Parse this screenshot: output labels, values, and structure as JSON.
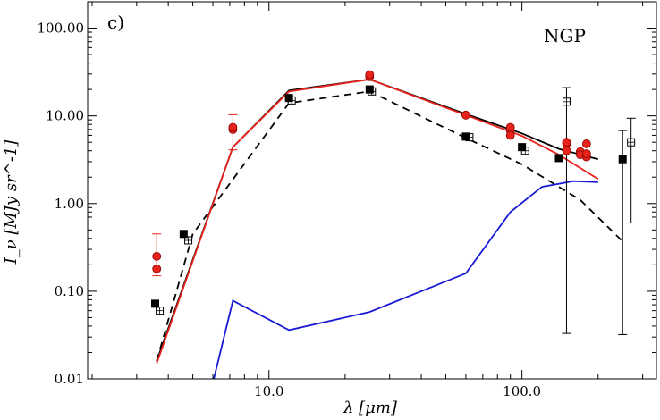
{
  "chart_data": {
    "type": "line",
    "panel_label": "c)",
    "region_label": "NGP",
    "xlabel": "λ [μm]",
    "ylabel": "I_ν [MJy sr^-1]",
    "xscale": "log",
    "yscale": "log",
    "xlim": [
      1.92,
      340
    ],
    "ylim": [
      0.01,
      200
    ],
    "xticks": [
      {
        "value": 10,
        "label": "10.0"
      },
      {
        "value": 100,
        "label": "100.0"
      }
    ],
    "yticks": [
      {
        "value": 0.01,
        "label": "0.01"
      },
      {
        "value": 0.1,
        "label": "0.10"
      },
      {
        "value": 1,
        "label": "1.00"
      },
      {
        "value": 10,
        "label": "10.00"
      },
      {
        "value": 100,
        "label": "100.00"
      }
    ],
    "lines": [
      {
        "name": "total model",
        "color": "#000000",
        "style": "solid",
        "x": [
          3.6,
          7.2,
          12,
          25,
          60,
          100,
          140,
          200
        ],
        "y": [
          0.016,
          4.4,
          19.5,
          26,
          10.5,
          6.3,
          4.2,
          3.2
        ]
      },
      {
        "name": "model (dashed)",
        "color": "#000000",
        "style": "dashed",
        "x": [
          3.6,
          5.0,
          12,
          25,
          60,
          100,
          170,
          250
        ],
        "y": [
          0.016,
          0.45,
          14,
          19,
          5.6,
          2.8,
          1.1,
          0.37
        ]
      },
      {
        "name": "red model",
        "color": "#e8231c",
        "style": "solid",
        "x": [
          3.6,
          7.2,
          12,
          25,
          60,
          100,
          140,
          200
        ],
        "y": [
          0.015,
          4.4,
          19,
          26,
          10.2,
          5.9,
          3.6,
          1.9
        ]
      },
      {
        "name": "blue model",
        "color": "#1a1ad6",
        "style": "solid",
        "x": [
          6.0,
          7.2,
          12,
          25,
          60,
          90,
          120,
          160,
          200
        ],
        "y": [
          0.009,
          0.078,
          0.036,
          0.058,
          0.16,
          0.8,
          1.55,
          1.8,
          1.75
        ]
      }
    ],
    "red_circles": [
      {
        "x": 3.6,
        "y": 0.25,
        "err_low": 0.15,
        "err_high": 0.45
      },
      {
        "x": 3.6,
        "y": 0.18
      },
      {
        "x": 7.2,
        "y": 7.0,
        "err_low": 4.1,
        "err_high": 10.3
      },
      {
        "x": 7.2,
        "y": 7.4
      },
      {
        "x": 25,
        "y": 28
      },
      {
        "x": 25,
        "y": 29.5
      },
      {
        "x": 60,
        "y": 10.2
      },
      {
        "x": 90,
        "y": 6.8
      },
      {
        "x": 90,
        "y": 7.4
      },
      {
        "x": 90,
        "y": 6.0
      },
      {
        "x": 150,
        "y": 4.8
      },
      {
        "x": 150,
        "y": 5.0
      },
      {
        "x": 150,
        "y": 4.0
      },
      {
        "x": 170,
        "y": 3.9
      },
      {
        "x": 170,
        "y": 3.6
      },
      {
        "x": 180,
        "y": 4.8
      },
      {
        "x": 180,
        "y": 3.4
      },
      {
        "x": 180,
        "y": 3.7
      }
    ],
    "filled_squares": [
      {
        "x": 3.55,
        "y": 0.072
      },
      {
        "x": 4.6,
        "y": 0.45
      },
      {
        "x": 12,
        "y": 16
      },
      {
        "x": 25,
        "y": 20
      },
      {
        "x": 60,
        "y": 5.8
      },
      {
        "x": 100,
        "y": 4.4
      },
      {
        "x": 140,
        "y": 3.3
      },
      {
        "x": 250,
        "y": 3.2,
        "err_low": 0.032,
        "err_high": 6.8
      }
    ],
    "open_squares": [
      {
        "x": 3.7,
        "y": 0.06
      },
      {
        "x": 4.8,
        "y": 0.38
      },
      {
        "x": 12.3,
        "y": 15
      },
      {
        "x": 25.5,
        "y": 19
      },
      {
        "x": 62,
        "y": 5.7
      },
      {
        "x": 103,
        "y": 4.0
      },
      {
        "x": 150,
        "y": 14.5,
        "err_low": 0.033,
        "err_high": 21
      },
      {
        "x": 270,
        "y": 5.0,
        "err_low": 0.6,
        "err_high": 9.4
      }
    ]
  }
}
